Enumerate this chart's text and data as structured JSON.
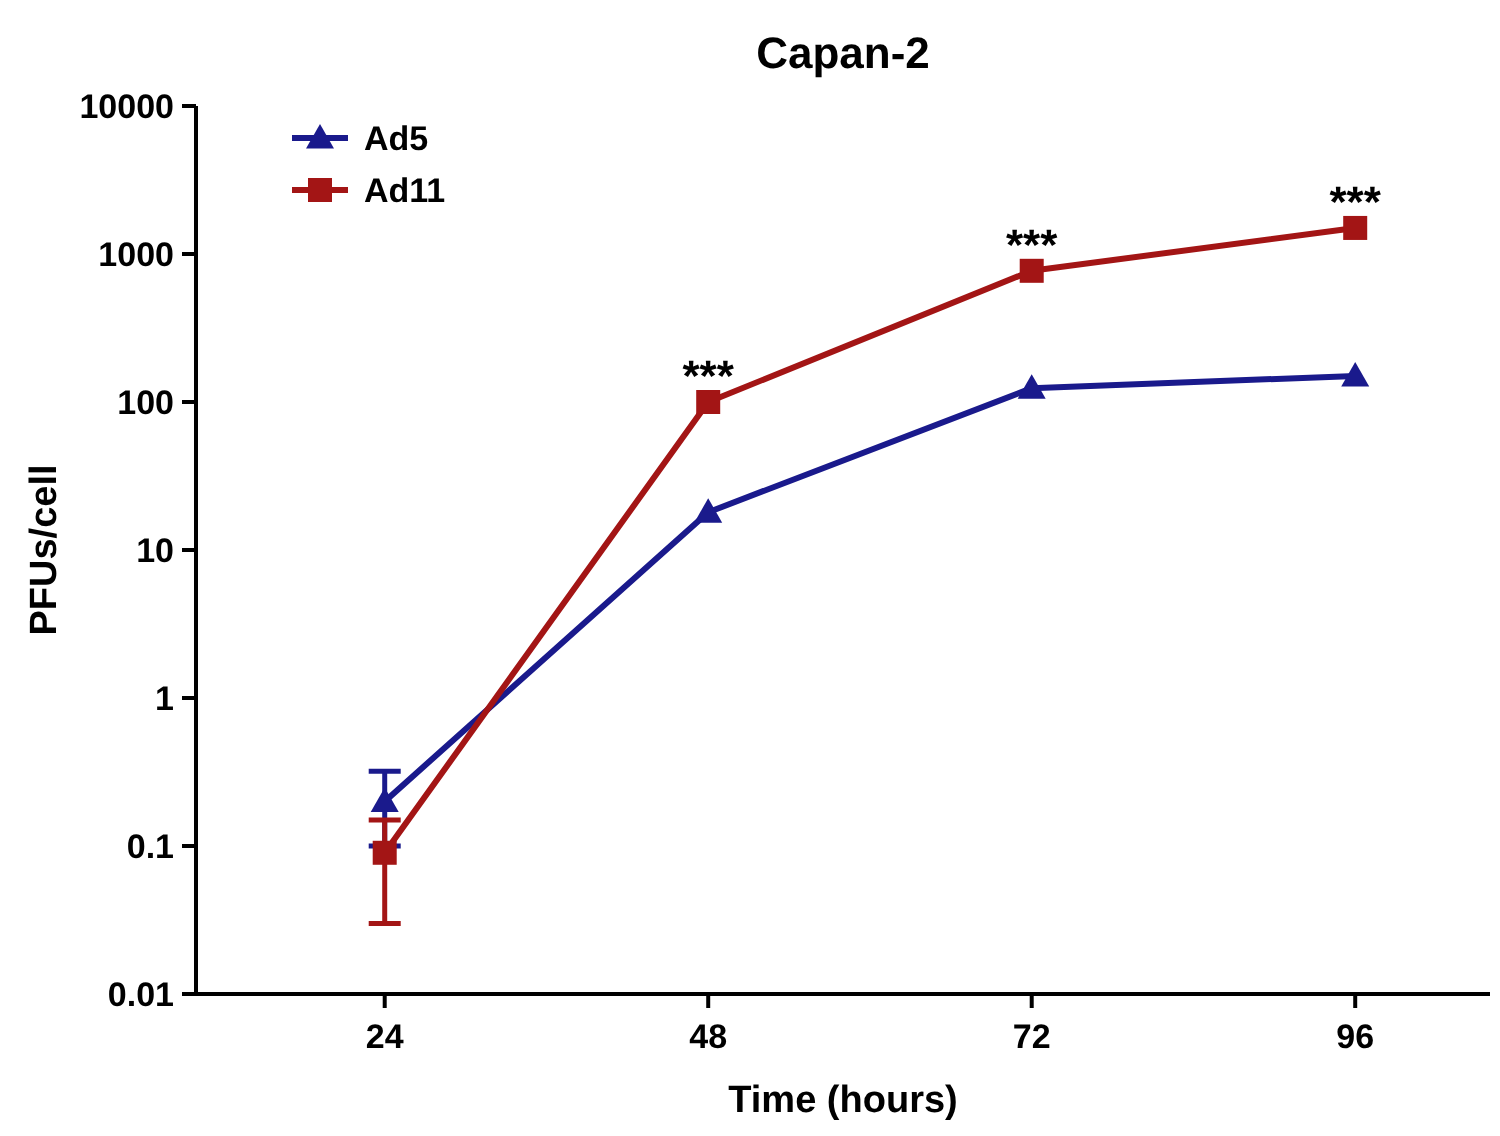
{
  "chart_data": {
    "type": "line",
    "title": "Capan-2",
    "xlabel": "Time (hours)",
    "ylabel": "PFUs/cell",
    "x": [
      24,
      48,
      72,
      96
    ],
    "series": [
      {
        "name": "Ad5",
        "color": "#1a1a8c",
        "marker": "triangle",
        "values": [
          0.2,
          18,
          124,
          150
        ],
        "errors": [
          [
            0.1,
            0.32
          ],
          null,
          null,
          null
        ]
      },
      {
        "name": "Ad11",
        "color": "#a31515",
        "marker": "square",
        "values": [
          0.09,
          100,
          770,
          1500
        ],
        "errors": [
          [
            0.03,
            0.15
          ],
          null,
          null,
          null
        ]
      }
    ],
    "log": "y",
    "xlim": [
      10,
      106
    ],
    "xticks": [
      24,
      48,
      72,
      96
    ],
    "ylim": [
      0.01,
      10000
    ],
    "yticks": [
      0.01,
      0.1,
      1,
      10,
      100,
      1000,
      10000
    ],
    "legend": "top left",
    "grid": false,
    "line_style": "solid",
    "annotations": [
      {
        "text": "***",
        "x": 48,
        "y": 100
      },
      {
        "text": "***",
        "x": 72,
        "y": 770
      },
      {
        "text": "***",
        "x": 96,
        "y": 1500
      }
    ]
  }
}
